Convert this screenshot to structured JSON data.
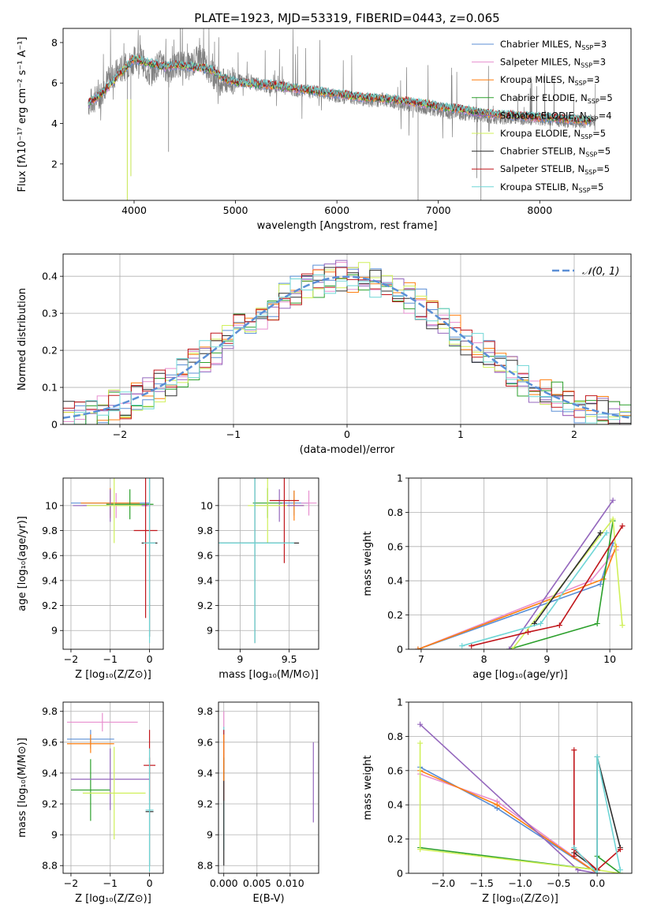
{
  "chart_data": [
    {
      "id": "spectrum",
      "type": "line",
      "title": "PLATE=1923, MJD=53319, FIBERID=0443, z=0.065",
      "xlabel": "wavelength [Angstrom, rest frame]",
      "ylabel": "Flux [fλ10⁻¹⁷ erg cm⁻² s⁻¹ A⁻¹]",
      "xlim": [
        3300,
        8900
      ],
      "ylim": [
        0.2,
        8.7
      ],
      "xticks": [
        4000,
        5000,
        6000,
        7000,
        8000
      ],
      "yticks": [
        2,
        4,
        6,
        8
      ],
      "legend_position": "top-right",
      "observed_flux": {
        "color": "#808080",
        "x": [
          3550,
          3650,
          3750,
          3850,
          3950,
          4050,
          4150,
          4250,
          4350,
          4450,
          4550,
          4650,
          4750,
          4850,
          4950,
          5050,
          5150,
          5250,
          5350,
          5450,
          5550,
          5650,
          5750,
          5850,
          5950,
          6050,
          6150,
          6250,
          6350,
          6450,
          6550,
          6650,
          6750,
          6850,
          6950,
          7050,
          7150,
          7250,
          7350,
          7450,
          7550,
          7650,
          7750,
          7850,
          7950,
          8050,
          8150,
          8250,
          8350,
          8450,
          8550
        ],
        "y": [
          5.0,
          5.3,
          6.2,
          6.6,
          6.9,
          7.4,
          6.4,
          7.0,
          6.6,
          7.0,
          6.8,
          7.3,
          6.6,
          6.0,
          6.1,
          6.1,
          6.0,
          5.9,
          5.8,
          5.9,
          5.7,
          5.6,
          5.6,
          5.5,
          5.4,
          5.3,
          5.3,
          5.2,
          5.1,
          5.2,
          5.1,
          4.9,
          4.9,
          4.8,
          4.7,
          4.6,
          4.5,
          4.5,
          4.4,
          4.4,
          4.3,
          4.3,
          4.3,
          4.2,
          4.3,
          4.2,
          4.2,
          4.1,
          4.1,
          4.1,
          4.2
        ]
      },
      "model_flux": {
        "x": [
          3550,
          3700,
          3850,
          4000,
          4150,
          4300,
          4450,
          4600,
          4750,
          4900,
          5050,
          5200,
          5350,
          5500,
          5650,
          5800,
          5950,
          6100,
          6250,
          6400,
          6550,
          6700,
          6850,
          7000,
          7150,
          7300,
          7450,
          7600,
          7750,
          7900,
          8050,
          8200,
          8350,
          8500
        ],
        "y": [
          5.0,
          5.6,
          6.4,
          7.2,
          7.0,
          6.8,
          6.9,
          6.8,
          6.7,
          6.2,
          6.0,
          5.95,
          5.9,
          5.8,
          5.7,
          5.6,
          5.5,
          5.4,
          5.3,
          5.25,
          5.2,
          5.1,
          5.0,
          4.85,
          4.75,
          4.65,
          4.5,
          4.45,
          4.4,
          4.35,
          4.3,
          4.25,
          4.2,
          4.15
        ]
      },
      "dips": [
        {
          "x": 3933,
          "y": 0.2
        },
        {
          "x": 3968,
          "y": 1.4
        },
        {
          "x": 4340,
          "y": 2.6
        },
        {
          "x": 6800,
          "y": 0.2
        },
        {
          "x": 7380,
          "y": 1.3
        },
        {
          "x": 7420,
          "y": 0.2
        }
      ]
    },
    {
      "id": "residuals",
      "type": "line",
      "xlabel": "(data-model)/error",
      "ylabel": "Normed distribution",
      "xlim": [
        -2.5,
        2.5
      ],
      "ylim": [
        0,
        0.46
      ],
      "xticks": [
        -2,
        -1,
        0,
        1,
        2
      ],
      "yticks": [
        0.0,
        0.1,
        0.2,
        0.3,
        0.4
      ],
      "normal_reference": {
        "label": "𝒩(0, 1)",
        "color": "#5b8fd6",
        "mean": 0,
        "sigma": 1
      },
      "bin_width": 0.1
    },
    {
      "id": "age-vs-Z",
      "type": "scatter",
      "xlabel": "Z [log₁₀(Z/Z⊙)]",
      "ylabel": "age  [log₁₀(age/yr)]",
      "xlim": [
        -2.2,
        0.35
      ],
      "ylim": [
        8.85,
        10.22
      ],
      "xticks": [
        -2,
        -1,
        0
      ],
      "yticks": [
        9.0,
        9.2,
        9.4,
        9.6,
        9.8,
        10.0
      ],
      "errorbars": [
        {
          "x": -1.0,
          "y": 10.02,
          "xerr": 1.0,
          "yerr": 0.1,
          "color": "#5b8fd6"
        },
        {
          "x": -0.85,
          "y": 10.0,
          "xerr": 0.85,
          "yerr": 0.1,
          "color": "#e78fcf"
        },
        {
          "x": -1.0,
          "y": 10.02,
          "xerr": 0.75,
          "yerr": 0.12,
          "color": "#ff7f0e"
        },
        {
          "x": -0.5,
          "y": 10.01,
          "xerr": 0.6,
          "yerr": 0.12,
          "color": "#2ca02c"
        },
        {
          "x": -1.0,
          "y": 10.0,
          "xerr": 0.95,
          "yerr": 0.13,
          "color": "#9467bd"
        },
        {
          "x": -0.9,
          "y": 10.0,
          "xerr": 0.7,
          "yerr": 0.3,
          "color": "#d0f05a"
        },
        {
          "x": 0.0,
          "y": 9.7,
          "xerr": 0.2,
          "yerr": 0.75,
          "color": "#2f2f2f"
        },
        {
          "x": -0.1,
          "y": 9.8,
          "xerr": 0.3,
          "yerr": 0.7,
          "color": "#c0161b"
        },
        {
          "x": 0.0,
          "y": 9.7,
          "xerr": 0.15,
          "yerr": 0.8,
          "color": "#6fd6d6"
        }
      ]
    },
    {
      "id": "age-vs-mass",
      "type": "scatter",
      "xlabel": "mass [log₁₀(M/M⊙)]",
      "ylabel": "",
      "xlim": [
        8.78,
        9.8
      ],
      "ylim": [
        8.85,
        10.22
      ],
      "xticks": [
        9.0,
        9.5
      ],
      "yticks": [
        9.0,
        9.2,
        9.4,
        9.6,
        9.8,
        10.0
      ],
      "errorbars": [
        {
          "x": 9.55,
          "y": 10.02,
          "xerr": 0.15,
          "yerr": 0.1,
          "color": "#5b8fd6"
        },
        {
          "x": 9.7,
          "y": 10.02,
          "xerr": 0.08,
          "yerr": 0.1,
          "color": "#e78fcf"
        },
        {
          "x": 9.55,
          "y": 10.0,
          "xerr": 0.1,
          "yerr": 0.12,
          "color": "#ff7f0e"
        },
        {
          "x": 9.28,
          "y": 10.02,
          "xerr": 0.15,
          "yerr": 0.12,
          "color": "#2ca02c"
        },
        {
          "x": 9.4,
          "y": 10.0,
          "xerr": 0.25,
          "yerr": 0.13,
          "color": "#9467bd"
        },
        {
          "x": 9.28,
          "y": 10.0,
          "xerr": 0.2,
          "yerr": 0.3,
          "color": "#d0f05a"
        },
        {
          "x": 9.15,
          "y": 9.7,
          "xerr": 0.45,
          "yerr": 0.8,
          "color": "#2f2f2f"
        },
        {
          "x": 9.45,
          "y": 10.04,
          "xerr": 0.15,
          "yerr": 0.5,
          "color": "#c0161b"
        },
        {
          "x": 9.15,
          "y": 9.7,
          "xerr": 0.4,
          "yerr": 0.8,
          "color": "#6fd6d6"
        }
      ]
    },
    {
      "id": "massweight-vs-age",
      "type": "line",
      "xlabel": "age  [log₁₀(age/yr)]",
      "ylabel": "mass weight",
      "xlim": [
        6.8,
        10.35
      ],
      "ylim": [
        0,
        1.0
      ],
      "xticks": [
        7,
        8,
        9,
        10
      ],
      "yticks": [
        0.0,
        0.2,
        0.4,
        0.6,
        0.8,
        1.0
      ],
      "series": [
        {
          "color": "#5b8fd6",
          "x": [
            6.95,
            9.85,
            10.05
          ],
          "y": [
            0.0,
            0.38,
            0.62
          ]
        },
        {
          "color": "#e78fcf",
          "x": [
            6.95,
            9.7,
            10.1
          ],
          "y": [
            0.0,
            0.4,
            0.58
          ]
        },
        {
          "color": "#ff7f0e",
          "x": [
            6.95,
            9.9,
            10.1
          ],
          "y": [
            0.0,
            0.41,
            0.6
          ]
        },
        {
          "color": "#2ca02c",
          "x": [
            8.4,
            9.8,
            10.05
          ],
          "y": [
            0.0,
            0.15,
            0.75
          ]
        },
        {
          "color": "#9467bd",
          "x": [
            8.4,
            10.05
          ],
          "y": [
            0.0,
            0.87
          ]
        },
        {
          "color": "#d0f05a",
          "x": [
            8.45,
            10.05,
            10.2
          ],
          "y": [
            0.0,
            0.76,
            0.14
          ]
        },
        {
          "color": "#2f2f2f",
          "x": [
            8.8,
            9.85
          ],
          "y": [
            0.15,
            0.68
          ]
        },
        {
          "color": "#c0161b",
          "x": [
            7.8,
            8.7,
            9.2,
            10.2
          ],
          "y": [
            0.02,
            0.1,
            0.14,
            0.72
          ]
        },
        {
          "color": "#6fd6d6",
          "x": [
            7.65,
            8.9,
            9.95
          ],
          "y": [
            0.02,
            0.15,
            0.68
          ]
        }
      ]
    },
    {
      "id": "mass-vs-Z",
      "type": "scatter",
      "xlabel": "Z [log₁₀(Z/Z⊙)]",
      "ylabel": "mass [log₁₀(M/M⊙)]",
      "xlim": [
        -2.2,
        0.35
      ],
      "ylim": [
        8.75,
        9.86
      ],
      "xticks": [
        -2,
        -1,
        0
      ],
      "yticks": [
        8.8,
        9.0,
        9.2,
        9.4,
        9.6,
        9.8
      ],
      "errorbars": [
        {
          "x": -1.5,
          "y": 9.62,
          "xerr": 0.6,
          "yerr": 0.06,
          "color": "#5b8fd6"
        },
        {
          "x": -1.2,
          "y": 9.73,
          "xerr": 0.9,
          "yerr": 0.06,
          "color": "#e78fcf"
        },
        {
          "x": -1.5,
          "y": 9.59,
          "xerr": 0.6,
          "yerr": 0.06,
          "color": "#ff7f0e"
        },
        {
          "x": -1.5,
          "y": 9.29,
          "xerr": 0.5,
          "yerr": 0.2,
          "color": "#2ca02c"
        },
        {
          "x": -1.0,
          "y": 9.36,
          "xerr": 1.0,
          "yerr": 0.2,
          "color": "#9467bd"
        },
        {
          "x": -0.9,
          "y": 9.27,
          "xerr": 0.8,
          "yerr": 0.3,
          "color": "#d0f05a"
        },
        {
          "x": 0.0,
          "y": 9.15,
          "xerr": 0.1,
          "yerr": 0.35,
          "color": "#2f2f2f"
        },
        {
          "x": 0.0,
          "y": 9.45,
          "xerr": 0.15,
          "yerr": 0.23,
          "color": "#c0161b"
        },
        {
          "x": 0.0,
          "y": 9.16,
          "xerr": 0.1,
          "yerr": 0.4,
          "color": "#6fd6d6"
        }
      ]
    },
    {
      "id": "mass-vs-EBV",
      "type": "scatter",
      "xlabel": "E(B-V)",
      "ylabel": "",
      "xlim": [
        -0.0008,
        0.0143
      ],
      "ylim": [
        8.75,
        9.86
      ],
      "xticks": [
        0.0,
        0.005,
        0.01
      ],
      "xticklabels": [
        "0.000",
        "0.005",
        "0.010"
      ],
      "yticks": [
        8.8,
        9.0,
        9.2,
        9.4,
        9.6,
        9.8
      ],
      "errorbars": [
        {
          "x": 0.0,
          "y": 9.62,
          "xerr": 0.0,
          "yerr": 0.18,
          "color": "#e78fcf"
        },
        {
          "x": 0.0,
          "y": 9.3,
          "xerr": 0.0,
          "yerr": 0.4,
          "color": "#6fd6d6"
        },
        {
          "x": 0.0,
          "y": 9.45,
          "xerr": 0.0,
          "yerr": 0.23,
          "color": "#c0161b"
        },
        {
          "x": 0.0,
          "y": 9.15,
          "xerr": 0.0,
          "yerr": 0.35,
          "color": "#2f2f2f"
        },
        {
          "x": 0.0,
          "y": 9.5,
          "xerr": 0.0,
          "yerr": 0.15,
          "color": "#ff7f0e"
        },
        {
          "x": 0.0135,
          "y": 9.34,
          "xerr": 0.0,
          "yerr": 0.26,
          "color": "#9467bd"
        }
      ]
    },
    {
      "id": "massweight-vs-Z",
      "type": "line",
      "xlabel": "Z [log₁₀(Z/Z⊙)]",
      "ylabel": "mass weight",
      "xlim": [
        -2.45,
        0.45
      ],
      "ylim": [
        0,
        1.0
      ],
      "xticks": [
        -2.0,
        -1.5,
        -1.0,
        -0.5,
        0.0
      ],
      "xticklabels": [
        "−2.0",
        "−1.5",
        "−1.0",
        "−0.5",
        "0.0"
      ],
      "yticks": [
        0.0,
        0.2,
        0.4,
        0.6,
        0.8,
        1.0
      ],
      "series": [
        {
          "color": "#5b8fd6",
          "x": [
            -2.3,
            -1.3,
            0.0
          ],
          "y": [
            0.62,
            0.38,
            0.0
          ]
        },
        {
          "color": "#e78fcf",
          "x": [
            -2.3,
            -1.3,
            0.0
          ],
          "y": [
            0.58,
            0.42,
            0.0
          ]
        },
        {
          "color": "#ff7f0e",
          "x": [
            -2.3,
            -1.3,
            0.0
          ],
          "y": [
            0.6,
            0.4,
            0.0
          ]
        },
        {
          "color": "#2ca02c",
          "x": [
            -2.3,
            0.0,
            0.0,
            0.3
          ],
          "y": [
            0.15,
            0.02,
            0.1,
            0.0
          ]
        },
        {
          "color": "#9467bd",
          "x": [
            -2.3,
            -0.25,
            0.0
          ],
          "y": [
            0.87,
            0.02,
            0.0
          ]
        },
        {
          "color": "#d0f05a",
          "x": [
            -2.3,
            -2.3,
            0.0,
            0.3
          ],
          "y": [
            0.76,
            0.14,
            0.02,
            0.0
          ]
        },
        {
          "color": "#2f2f2f",
          "x": [
            -0.3,
            0.0,
            0.0,
            0.3
          ],
          "y": [
            0.12,
            0.02,
            0.68,
            0.15
          ]
        },
        {
          "color": "#c0161b",
          "x": [
            -0.3,
            -0.3,
            -0.3,
            0.0,
            0.3
          ],
          "y": [
            0.72,
            0.1,
            0.14,
            0.02,
            0.14
          ]
        },
        {
          "color": "#6fd6d6",
          "x": [
            -0.3,
            0.0,
            0.0,
            0.3
          ],
          "y": [
            0.15,
            0.0,
            0.68,
            0.02
          ]
        }
      ]
    }
  ],
  "legend": [
    {
      "label": "Chabrier MILES, N",
      "sub": "SSP",
      "suffix": "=3",
      "color": "#5b8fd6"
    },
    {
      "label": "Salpeter MILES, N",
      "sub": "SSP",
      "suffix": "=3",
      "color": "#e78fcf"
    },
    {
      "label": "Kroupa MILES, N",
      "sub": "SSP",
      "suffix": "=3",
      "color": "#ff7f0e"
    },
    {
      "label": "Chabrier ELODIE, N",
      "sub": "SSP",
      "suffix": "=5",
      "color": "#2ca02c"
    },
    {
      "label": "Salpeter ELODIE, N",
      "sub": "SSP",
      "suffix": "=4",
      "color": "#9467bd"
    },
    {
      "label": "Kroupa ELODIE, N",
      "sub": "SSP",
      "suffix": "=5",
      "color": "#d0f05a"
    },
    {
      "label": "Chabrier STELIB, N",
      "sub": "SSP",
      "suffix": "=5",
      "color": "#2f2f2f"
    },
    {
      "label": "Salpeter STELIB, N",
      "sub": "SSP",
      "suffix": "=5",
      "color": "#c0161b"
    },
    {
      "label": "Kroupa STELIB, N",
      "sub": "SSP",
      "suffix": "=5",
      "color": "#6fd6d6"
    }
  ]
}
